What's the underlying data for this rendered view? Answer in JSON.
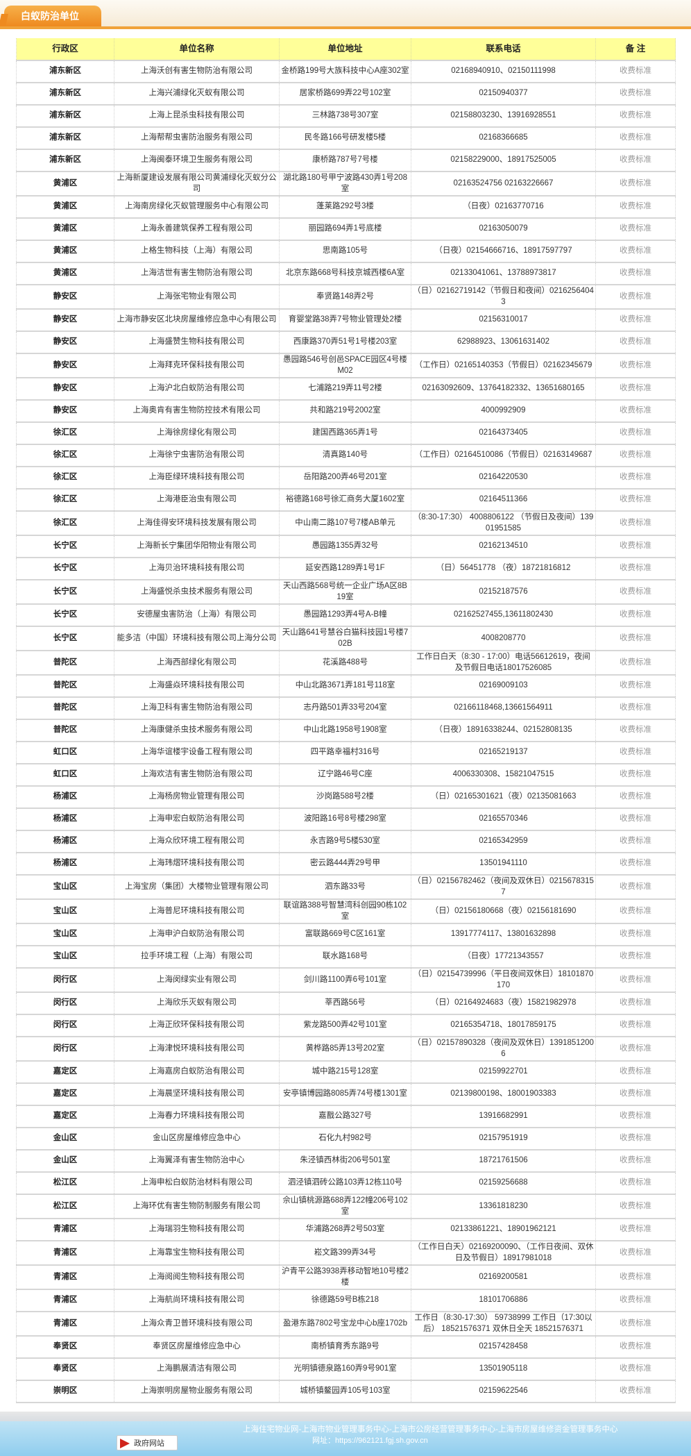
{
  "page": {
    "tab_title": "白蚁防治单位"
  },
  "table": {
    "headers": [
      "行政区",
      "单位名称",
      "单位地址",
      "联系电话",
      "备 注"
    ],
    "fee_label": "收费标准",
    "rows": [
      [
        "浦东新区",
        "上海沃创有害生物防治有限公司",
        "金桥路199号大族科技中心A座302室",
        "02168940910、02150111998"
      ],
      [
        "浦东新区",
        "上海兴浦绿化灭蚁有限公司",
        "居家桥路699弄22号102室",
        "02150940377"
      ],
      [
        "浦东新区",
        "上海上昆杀虫科技有限公司",
        "三林路738号307室",
        "02158803230、13916928551"
      ],
      [
        "浦东新区",
        "上海帮帮虫害防治服务有限公司",
        "民冬路166号研发楼5楼",
        "02168366685"
      ],
      [
        "浦东新区",
        "上海闽泰环境卫生服务有限公司",
        "康桥路787号7号楼",
        "02158229000、18917525005"
      ],
      [
        "黄浦区",
        "上海新厦建设发展有限公司黄浦绿化灭蚁分公司",
        "湖北路180号甲宁波路430弄1号208室",
        "02163524756 02163226667"
      ],
      [
        "黄浦区",
        "上海南房绿化灭蚁管理服务中心有限公司",
        "蓬莱路292号3楼",
        "（日夜）02163770716"
      ],
      [
        "黄浦区",
        "上海永善建筑保养工程有限公司",
        "丽园路694弄1号底楼",
        "02163050079"
      ],
      [
        "黄浦区",
        "上格生物科技（上海）有限公司",
        "思南路105号",
        "（日夜）02154666716、18917597797"
      ],
      [
        "黄浦区",
        "上海洁世有害生物防治有限公司",
        "北京东路668号科技京城西楼6A室",
        "02133041061、13788973817"
      ],
      [
        "静安区",
        "上海张宅物业有限公司",
        "奉贤路148弄2号",
        "（日）02162719142（节假日和夜间）02162564043"
      ],
      [
        "静安区",
        "上海市静安区北块房屋维修应急中心有限公司",
        "育婴堂路38弄7号物业管理处2楼",
        "02156310017"
      ],
      [
        "静安区",
        "上海盛赞生物科技有限公司",
        "西康路370弄51号1号楼203室",
        "62988923、13061631402"
      ],
      [
        "静安区",
        "上海拜克环保科技有限公司",
        "愚园路546号创邑SPACE园区4号楼M02",
        "（工作日）02165140353（节假日）02162345679"
      ],
      [
        "静安区",
        "上海沪北白蚁防治有限公司",
        "七浦路219弄11号2楼",
        "02163092609、13764182332、13651680165"
      ],
      [
        "静安区",
        "上海奥肯有害生物防控技术有限公司",
        "共和路219号2002室",
        "4000992909"
      ],
      [
        "徐汇区",
        "上海徐房绿化有限公司",
        "建国西路365弄1号",
        "02164373405"
      ],
      [
        "徐汇区",
        "上海徐宁虫害防治有限公司",
        "清真路140号",
        "（工作日）02164510086（节假日）02163149687"
      ],
      [
        "徐汇区",
        "上海臣绿环境科技有限公司",
        "岳阳路200弄46号201室",
        "02164220530"
      ],
      [
        "徐汇区",
        "上海港臣治虫有限公司",
        "裕德路168号徐汇商务大厦1602室",
        "02164511366"
      ],
      [
        "徐汇区",
        "上海佳得安环境科技发展有限公司",
        "中山南二路107号7楼AB单元",
        "（8:30-17:30） 4008806122 （节假日及夜间）13901951585"
      ],
      [
        "长宁区",
        "上海新长宁集团华阳物业有限公司",
        "愚园路1355弄32号",
        "02162134510"
      ],
      [
        "长宁区",
        "上海贝治环境科技有限公司",
        "延安西路1289弄1号1F",
        "（日）56451778 （夜）18721816812"
      ],
      [
        "长宁区",
        "上海盛悦杀虫技术服务有限公司",
        "天山西路568号统一企业广场A区8B19室",
        "02152187576"
      ],
      [
        "长宁区",
        "安德屋虫害防治（上海）有限公司",
        "愚园路1293弄4号A-B幢",
        "02162527455,13611802430"
      ],
      [
        "长宁区",
        "能多洁（中国）环境科技有限公司上海分公司",
        "天山路641号慧谷白猫科技园1号楼702B",
        "4008208770"
      ],
      [
        "普陀区",
        "上海西部绿化有限公司",
        "花溪路488号",
        "工作日白天（8:30 - 17:00）电话56612619，夜间及节假日电话18017526085"
      ],
      [
        "普陀区",
        "上海盛焱环境科技有限公司",
        "中山北路3671弄181号118室",
        "02169009103"
      ],
      [
        "普陀区",
        "上海卫科有害生物防治有限公司",
        "志丹路501弄33号204室",
        "02166118468,13661564911"
      ],
      [
        "普陀区",
        "上海康健杀虫技术服务有限公司",
        "中山北路1958号1908室",
        "（日夜）18916338244、02152808135"
      ],
      [
        "虹口区",
        "上海华谊楼宇设备工程有限公司",
        "四平路幸福村316号",
        "02165219137"
      ],
      [
        "虹口区",
        "上海欢洁有害生物防治有限公司",
        "辽宁路46号C座",
        "4006330308、15821047515"
      ],
      [
        "杨浦区",
        "上海杨房物业管理有限公司",
        "沙岗路588号2楼",
        "（日）02165301621（夜）02135081663"
      ],
      [
        "杨浦区",
        "上海申宏白蚁防治有限公司",
        "波阳路16号8号楼298室",
        "02165570346"
      ],
      [
        "杨浦区",
        "上海众欣环境工程有限公司",
        "永吉路9号5楼530室",
        "02165342959"
      ],
      [
        "杨浦区",
        "上海玮熠环境科技有限公司",
        "密云路444弄29号甲",
        "13501941110"
      ],
      [
        "宝山区",
        "上海宝房（集团）大楼物业管理有限公司",
        "泗东路33号",
        "（日）02156782462（夜间及双休日）02156783157"
      ],
      [
        "宝山区",
        "上海普尼环境科技有限公司",
        "联谊路388号智慧湾科创园90栋102室",
        "（日）02156180668（夜）02156181690"
      ],
      [
        "宝山区",
        "上海申沪白蚁防治有限公司",
        "富联路669号C区161室",
        "13917774117、13801632898"
      ],
      [
        "宝山区",
        "拉手环境工程（上海）有限公司",
        "联水路168号",
        "（日夜）17721343557"
      ],
      [
        "闵行区",
        "上海闵绿实业有限公司",
        "剑川路1100弄6号101室",
        "（日）02154739996（平日夜间双休日）18101870170"
      ],
      [
        "闵行区",
        "上海欣乐灭蚁有限公司",
        "莘西路56号",
        "（日）02164924683（夜）15821982978"
      ],
      [
        "闵行区",
        "上海正欣环保科技有限公司",
        "紫龙路500弄42号101室",
        "02165354718、18017859175"
      ],
      [
        "闵行区",
        "上海津悦环境科技有限公司",
        "黄桦路85弄13号202室",
        "（日）02157890328（夜间及双休日）13918512006"
      ],
      [
        "嘉定区",
        "上海嘉房白蚁防治有限公司",
        "城中路215号128室",
        "02159922701"
      ],
      [
        "嘉定区",
        "上海晨坚环境科技有限公司",
        "安亭镇博园路8085弄74号楼1301室",
        "02139800198、18001903383"
      ],
      [
        "嘉定区",
        "上海春力环境科技有限公司",
        "嘉戬公路327号",
        "13916682991"
      ],
      [
        "金山区",
        "金山区房屋维修应急中心",
        "石化九村982号",
        "02157951919"
      ],
      [
        "金山区",
        "上海翼泽有害生物防治中心",
        "朱泾镇西林街206号501室",
        "18721761506"
      ],
      [
        "松江区",
        "上海申松白蚁防治材料有限公司",
        "泗泾镇泗砖公路103弄12栋110号",
        "02159256688"
      ],
      [
        "松江区",
        "上海环优有害生物防制服务有限公司",
        "佘山镇桃源路688弄122幢206号102室",
        "13361818230"
      ],
      [
        "青浦区",
        "上海瑞羽生物科技有限公司",
        "华浦路268弄2号503室",
        "02133861221、18901962121"
      ],
      [
        "青浦区",
        "上海靠宝生物科技有限公司",
        "崧文路399弄34号",
        "（工作日白天）02169200090、（工作日夜间、双休日及节假日）18917981018"
      ],
      [
        "青浦区",
        "上海阅阅生物科技有限公司",
        "沪青平公路3938弄移动智地10号楼2楼",
        "02169200581"
      ],
      [
        "青浦区",
        "上海航尚环境科技有限公司",
        "徐德路59号B栋218",
        "18101706886"
      ],
      [
        "青浦区",
        "上海众青卫普环境科技有限公司",
        "盈港东路7802号宝龙中心b座1702b",
        "工作日（8:30-17:30） 59738999 工作日（17:30以后） 18521576371 双休日全天 18521576371"
      ],
      [
        "奉贤区",
        "奉贤区房屋维修应急中心",
        "南桥镇育秀东路9号",
        "02157428458"
      ],
      [
        "奉贤区",
        "上海鹏展清洁有限公司",
        "光明镇德泉路160弄9号901室",
        "13501905118"
      ],
      [
        "崇明区",
        "上海崇明房屋物业服务有限公司",
        "城桥镇鳌园弄105号103室",
        "02159622546"
      ]
    ]
  },
  "footer": {
    "line1": "上海住宅物业网-上海市物业管理事务中心-上海市公房经营管理事务中心-上海市房屋维修资金管理事务中心",
    "line2": "网址：https://962121.fgj.sh.gov.cn",
    "badge": "政府网站"
  },
  "colors": {
    "accent": "#ee8a1f",
    "header_bg": "#ffff99",
    "footer_bg": "#8fcdee"
  }
}
